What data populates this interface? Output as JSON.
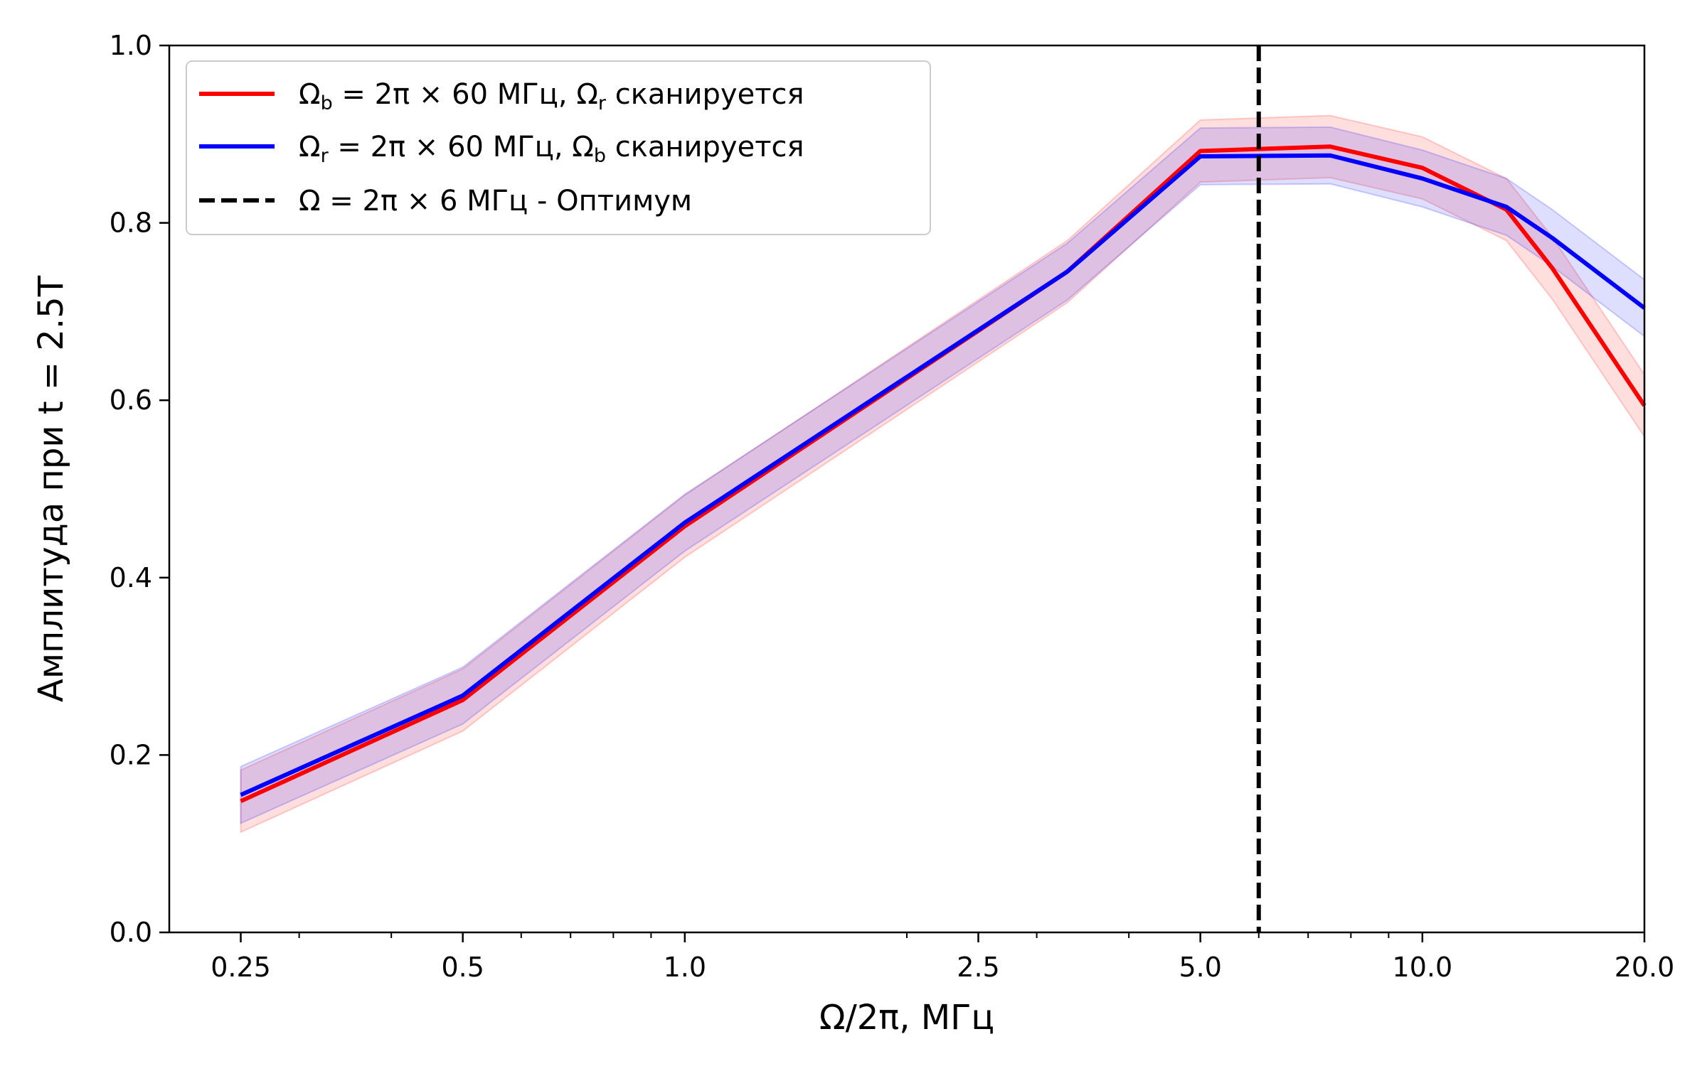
{
  "chart_data": {
    "type": "line",
    "xlabel": "Ω/2π,  МГц",
    "ylabel": "Амплитуда при t = 2.5T",
    "x_scale": "log",
    "xlim": [
      0.2,
      20.0
    ],
    "ylim": [
      0.0,
      1.0
    ],
    "x_ticks": [
      {
        "value": 0.25,
        "label": "0.25"
      },
      {
        "value": 0.5,
        "label": "0.5"
      },
      {
        "value": 1.0,
        "label": "1.0"
      },
      {
        "value": 2.5,
        "label": "2.5"
      },
      {
        "value": 5.0,
        "label": "5.0"
      },
      {
        "value": 10.0,
        "label": "10.0"
      },
      {
        "value": 20.0,
        "label": "20.0"
      }
    ],
    "y_ticks": [
      {
        "value": 0.0,
        "label": "0.0"
      },
      {
        "value": 0.2,
        "label": "0.2"
      },
      {
        "value": 0.4,
        "label": "0.4"
      },
      {
        "value": 0.6,
        "label": "0.6"
      },
      {
        "value": 0.8,
        "label": "0.8"
      },
      {
        "value": 1.0,
        "label": "1.0"
      }
    ],
    "x": [
      0.25,
      0.5,
      1.0,
      3.3,
      5.0,
      7.5,
      10.0,
      13.0,
      15.0,
      20.0
    ],
    "series": [
      {
        "name": "Ω_b = 2π × 60 МГц, Ω_r сканируется",
        "legend_parts": {
          "main": "Ω",
          "sub": "b",
          "mid": " = 2π × 60 МГц, Ω",
          "sub2": "r",
          "tail": " сканируется"
        },
        "color": "#ff0000",
        "values": [
          0.148,
          0.262,
          0.458,
          0.745,
          0.881,
          0.886,
          0.862,
          0.815,
          0.749,
          0.594
        ],
        "band": 0.035
      },
      {
        "name": "Ω_r = 2π × 60 МГц, Ω_b сканируется",
        "legend_parts": {
          "main": "Ω",
          "sub": "r",
          "mid": " = 2π × 60 МГц, Ω",
          "sub2": "b",
          "tail": " сканируется"
        },
        "color": "#0000ff",
        "values": [
          0.155,
          0.267,
          0.462,
          0.745,
          0.875,
          0.876,
          0.85,
          0.818,
          0.783,
          0.704
        ],
        "band": 0.032
      }
    ],
    "vline": {
      "x": 6.0,
      "label": "Ω = 2π × 6 МГц - Оптимум",
      "color": "#000000",
      "style": "dashed"
    },
    "legend_position": "upper-left",
    "grid": false
  }
}
